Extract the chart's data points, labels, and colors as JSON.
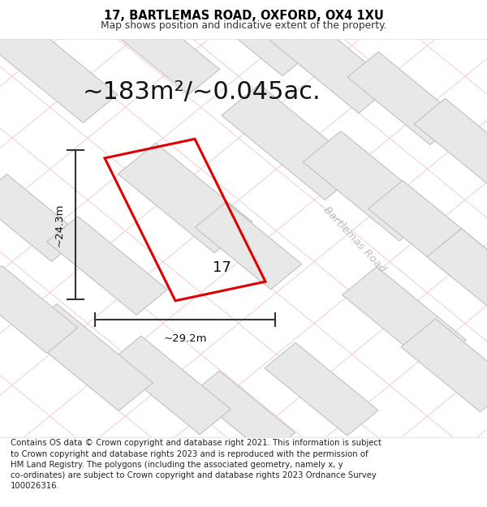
{
  "title": "17, BARTLEMAS ROAD, OXFORD, OX4 1XU",
  "subtitle": "Map shows position and indicative extent of the property.",
  "area_label": "~183m²/~0.045ac.",
  "width_label": "~29.2m",
  "height_label": "~24.3m",
  "property_number": "17",
  "footer_text": "Contains OS data © Crown copyright and database right 2021. This information is subject to Crown copyright and database rights 2023 and is reproduced with the permission of HM Land Registry. The polygons (including the associated geometry, namely x, y co-ordinates) are subject to Crown copyright and database rights 2023 Ordnance Survey 100026316.",
  "map_bg": "#f8f7f7",
  "building_color": "#e8e8e8",
  "building_edge": "#bbbbbb",
  "road_stripe_color": "#f2c8c8",
  "polygon_color": "#e00000",
  "dim_line_color": "#333333",
  "road_label_color": "#bbbbbb",
  "title_fontsize": 10.5,
  "subtitle_fontsize": 8.8,
  "area_fontsize": 22,
  "dim_fontsize": 9.5,
  "footer_fontsize": 7.3,
  "buildings": [
    [
      0.1,
      0.93,
      0.3,
      0.1,
      -45
    ],
    [
      0.32,
      0.99,
      0.28,
      0.09,
      -45
    ],
    [
      0.52,
      1.03,
      0.26,
      0.09,
      -45
    ],
    [
      0.68,
      0.94,
      0.26,
      0.1,
      -45
    ],
    [
      0.83,
      0.85,
      0.24,
      0.09,
      -45
    ],
    [
      0.96,
      0.74,
      0.22,
      0.09,
      -45
    ],
    [
      0.6,
      0.74,
      0.3,
      0.11,
      -45
    ],
    [
      0.76,
      0.63,
      0.28,
      0.11,
      -45
    ],
    [
      0.88,
      0.52,
      0.25,
      0.1,
      -45
    ],
    [
      0.99,
      0.41,
      0.22,
      0.1,
      -45
    ],
    [
      0.83,
      0.3,
      0.26,
      0.1,
      -45
    ],
    [
      0.94,
      0.18,
      0.23,
      0.1,
      -45
    ],
    [
      0.66,
      0.12,
      0.24,
      0.09,
      -45
    ],
    [
      0.5,
      0.06,
      0.22,
      0.08,
      -45
    ],
    [
      0.35,
      0.13,
      0.26,
      0.09,
      -45
    ],
    [
      0.18,
      0.2,
      0.28,
      0.1,
      -45
    ],
    [
      0.05,
      0.32,
      0.22,
      0.09,
      -45
    ],
    [
      0.06,
      0.55,
      0.22,
      0.09,
      -45
    ],
    [
      0.38,
      0.6,
      0.28,
      0.11,
      -45
    ],
    [
      0.51,
      0.48,
      0.22,
      0.09,
      -45
    ],
    [
      0.22,
      0.43,
      0.26,
      0.09,
      -45
    ]
  ]
}
